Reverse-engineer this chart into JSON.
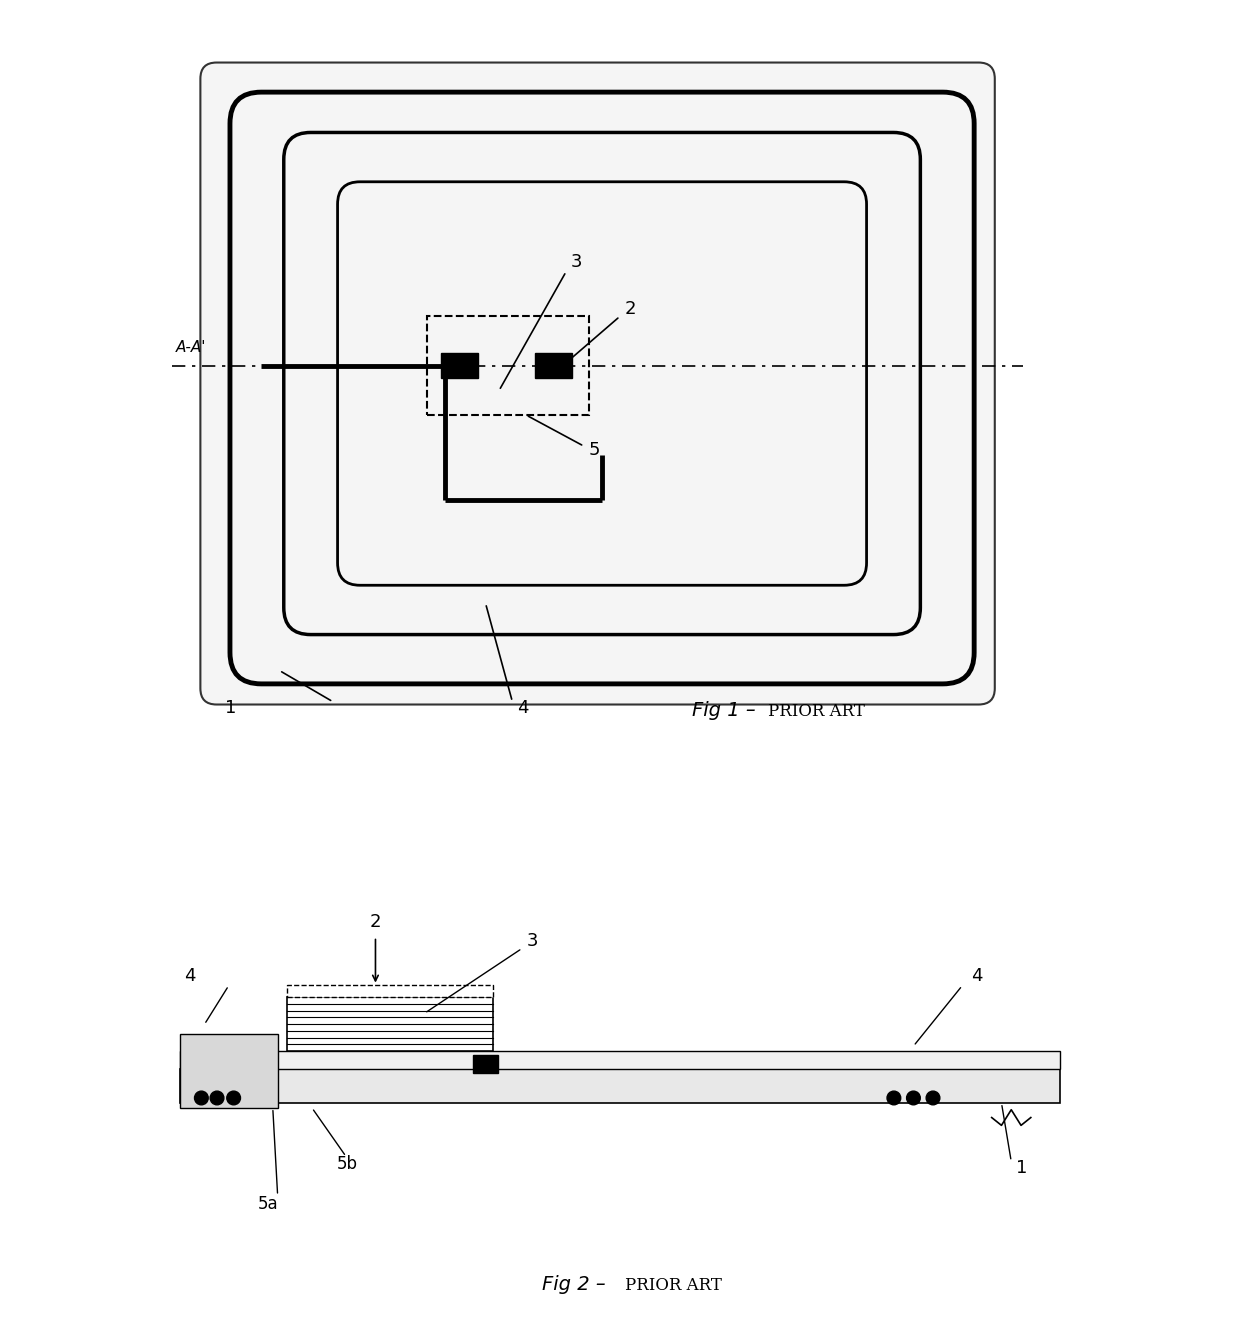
{
  "fig1_title": "Fig 1 –",
  "fig1_subtitle": "Prior Art",
  "fig2_title": "Fig 2 –",
  "fig2_subtitle": "Prior Art",
  "background_color": "#ffffff",
  "line_color": "#000000",
  "label_color": "#000000"
}
